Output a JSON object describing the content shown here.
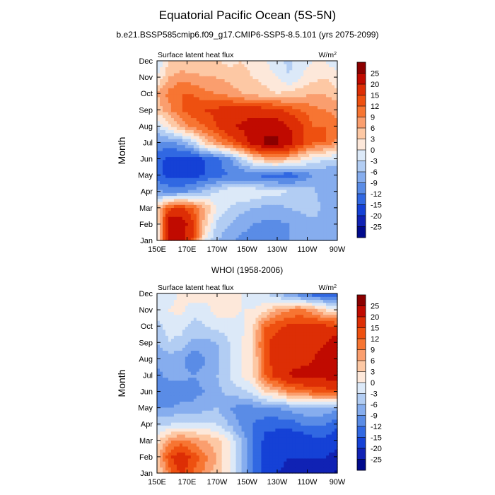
{
  "figure": {
    "title": "Equatorial Pacific Ocean (5S-5N)",
    "subtitle": "b.e21.BSSP585cmip6.f09_g17.CMIP6-SSP5-8.5.101 (yrs 2075-2099)"
  },
  "chart_data": [
    {
      "type": "heatmap",
      "title": "",
      "left_label": "Surface latent heat flux",
      "units_label": "W/m",
      "units_superscript": "2",
      "ylabel": "Month",
      "xlabel": "",
      "x_tick_labels": [
        "150E",
        "170E",
        "170W",
        "150W",
        "130W",
        "110W",
        "90W"
      ],
      "y_tick_labels": [
        "Jan",
        "Feb",
        "Mar",
        "Apr",
        "May",
        "Jun",
        "Jul",
        "Aug",
        "Sep",
        "Oct",
        "Nov",
        "Dec"
      ],
      "lon_range_east": [
        150,
        270
      ],
      "colorbar_levels": [
        "25",
        "20",
        "15",
        "12",
        "9",
        "6",
        "3",
        "0",
        "-3",
        "-6",
        "-9",
        "-12",
        "-15",
        "-20",
        "-25"
      ],
      "colorbar_colors": [
        "#8b0000",
        "#c00a00",
        "#dd2e05",
        "#ee5010",
        "#f77532",
        "#fa9e6e",
        "#fdc8a4",
        "#fde8da",
        "#dce9f8",
        "#b2cdf3",
        "#86adee",
        "#5a8ce6",
        "#3168e2",
        "#1541d6",
        "#1022b4",
        "#000a8c"
      ],
      "field": [
        [
          0,
          22,
          22,
          14,
          0,
          -6,
          -8,
          -10,
          -10,
          -10,
          -10,
          -9,
          -9,
          -9,
          -8,
          -8
        ],
        [
          0,
          24,
          24,
          16,
          4,
          -4,
          -6,
          -8,
          -9,
          -10,
          -10,
          -9,
          -9,
          -8,
          -8,
          -7
        ],
        [
          4,
          14,
          16,
          12,
          6,
          0,
          -3,
          -5,
          -6,
          -7,
          -7,
          -6,
          -5,
          -3,
          -8,
          -6
        ],
        [
          -8,
          -10,
          -10,
          -8,
          -5,
          -3,
          0,
          0,
          0,
          -2,
          -2,
          -3,
          -3,
          -5,
          -9,
          -6
        ],
        [
          -14,
          -16,
          -16,
          -16,
          -15,
          -13,
          -12,
          -12,
          -12,
          -13,
          -14,
          -15,
          -12,
          -9,
          -9,
          -9
        ],
        [
          -14,
          -16,
          -17,
          -17,
          -15,
          -13,
          -10,
          -4,
          2,
          6,
          7,
          5,
          2,
          -1,
          -3,
          -3
        ],
        [
          -10,
          -10,
          -8,
          -4,
          4,
          8,
          12,
          16,
          22,
          26,
          26,
          22,
          16,
          12,
          12,
          8
        ],
        [
          -3,
          2,
          6,
          10,
          12,
          15,
          19,
          21,
          23,
          23,
          23,
          20,
          16,
          12,
          12,
          10
        ],
        [
          4,
          8,
          12,
          14,
          15,
          16,
          17,
          17,
          17,
          17,
          16,
          14,
          12,
          10,
          9,
          8
        ],
        [
          6,
          10,
          12,
          12,
          10,
          9,
          8,
          6,
          5,
          4,
          3,
          4,
          5,
          6,
          6,
          4
        ],
        [
          0,
          6,
          8,
          7,
          6,
          6,
          5,
          4,
          3,
          2,
          0,
          -3,
          0,
          2,
          3,
          1
        ],
        [
          -4,
          3,
          3,
          3,
          4,
          3,
          2,
          3,
          2,
          0,
          -2,
          -4,
          -1,
          0,
          0,
          -2
        ]
      ]
    },
    {
      "type": "heatmap",
      "title": "WHOI (1958-2006)",
      "left_label": "Surface latent heat flux",
      "units_label": "W/m",
      "units_superscript": "2",
      "ylabel": "Month",
      "xlabel": "",
      "x_tick_labels": [
        "150E",
        "170E",
        "170W",
        "150W",
        "130W",
        "110W",
        "90W"
      ],
      "y_tick_labels": [
        "Jan",
        "Feb",
        "Mar",
        "Apr",
        "May",
        "Jun",
        "Jul",
        "Aug",
        "Sep",
        "Oct",
        "Nov",
        "Dec"
      ],
      "lon_range_east": [
        150,
        270
      ],
      "colorbar_levels": [
        "25",
        "20",
        "15",
        "12",
        "9",
        "6",
        "3",
        "0",
        "-3",
        "-6",
        "-9",
        "-12",
        "-15",
        "-20",
        "-25"
      ],
      "colorbar_colors": [
        "#8b0000",
        "#c00a00",
        "#dd2e05",
        "#ee5010",
        "#f77532",
        "#fa9e6e",
        "#fdc8a4",
        "#fde8da",
        "#dce9f8",
        "#b2cdf3",
        "#86adee",
        "#5a8ce6",
        "#3168e2",
        "#1541d6",
        "#1022b4",
        "#000a8c"
      ],
      "field": [
        [
          2,
          10,
          16,
          12,
          8,
          4,
          0,
          -6,
          -12,
          -16,
          -20,
          -22,
          -22,
          -22,
          -24,
          -26
        ],
        [
          4,
          14,
          18,
          14,
          10,
          6,
          0,
          -6,
          -12,
          -17,
          -18,
          -20,
          -20,
          -20,
          -20,
          -22
        ],
        [
          2,
          8,
          10,
          8,
          6,
          4,
          0,
          -6,
          -12,
          -16,
          -17,
          -18,
          -18,
          -16,
          -16,
          -18
        ],
        [
          -4,
          -3,
          -2,
          -2,
          -2,
          -3,
          -6,
          -10,
          -12,
          -14,
          -14,
          -14,
          -12,
          -12,
          -12,
          -14
        ],
        [
          -9,
          -9,
          -8,
          -8,
          -7,
          -6,
          -9,
          -10,
          -10,
          -9,
          -9,
          -8,
          -7,
          -6,
          -7,
          -8
        ],
        [
          -12,
          -12,
          -11,
          -10,
          -9,
          -7,
          -5,
          -4,
          -2,
          3,
          5,
          9,
          10,
          12,
          13,
          14
        ],
        [
          -10,
          -8,
          -8,
          -9,
          -8,
          -6,
          -3,
          0,
          3,
          12,
          17,
          20,
          22,
          22,
          22,
          24
        ],
        [
          -8,
          -8,
          -8,
          -12,
          -9,
          -7,
          -3,
          0,
          2,
          14,
          17,
          19,
          18,
          20,
          22,
          22
        ],
        [
          -6,
          -3,
          -4,
          -7,
          -7,
          -6,
          -3,
          0,
          3,
          14,
          17,
          19,
          16,
          18,
          20,
          24
        ],
        [
          -4,
          -2,
          -2,
          -4,
          -3,
          -2,
          -2,
          -1,
          3,
          12,
          14,
          16,
          16,
          17,
          16,
          16
        ],
        [
          -1,
          0,
          1,
          -2,
          -2,
          2,
          2,
          0,
          0,
          2,
          7,
          9,
          10,
          7,
          3,
          0
        ],
        [
          -2,
          -2,
          1,
          2,
          2,
          3,
          2,
          0,
          -2,
          -2,
          -6,
          -9,
          -12,
          -14,
          -14,
          -16
        ]
      ]
    }
  ]
}
